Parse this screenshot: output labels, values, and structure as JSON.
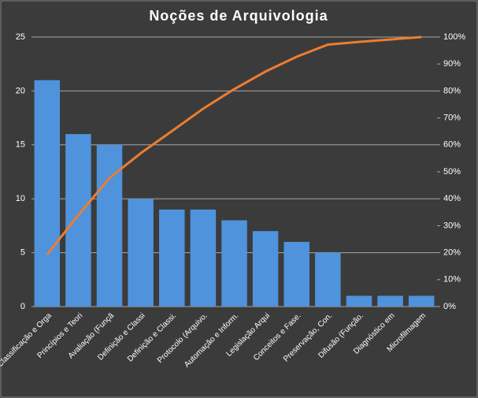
{
  "chart_data": {
    "type": "pareto",
    "title": "Noções de Arquivologia",
    "categories": [
      "Classificação e Orga",
      "Princípios e Teori",
      "Avaliação (Funçã",
      "Definição e Classi",
      "Definição e Classi.",
      "Protocolo (Arquivo.",
      "Automação e Inform.",
      "Legislação Arqui",
      "Conceitos e Fase.",
      "Preservação, Con.",
      "Difusão (Função.",
      "Diagnóstico em",
      "Microfilmagem"
    ],
    "series": [
      {
        "type": "bar",
        "color": "#4f93dc",
        "values": [
          21,
          16,
          15,
          10,
          9,
          9,
          8,
          7,
          6,
          5,
          1,
          1,
          1
        ]
      },
      {
        "type": "line",
        "axis": "y2",
        "color": "#ed7d31",
        "values": [
          19.3,
          33.9,
          47.7,
          56.9,
          65.1,
          73.4,
          80.7,
          87.2,
          92.7,
          97.2,
          98.2,
          99.1,
          100
        ]
      }
    ],
    "ylim": [
      0,
      25
    ],
    "yticks": [
      0,
      5,
      10,
      15,
      20,
      25
    ],
    "y2lim": [
      0,
      100
    ],
    "y2ticks": [
      {
        "value": 0,
        "label": "0%"
      },
      {
        "value": 10,
        "label": "10%"
      },
      {
        "value": 20,
        "label": "20%"
      },
      {
        "value": 30,
        "label": "30%"
      },
      {
        "value": 40,
        "label": "40%"
      },
      {
        "value": 50,
        "label": "50%"
      },
      {
        "value": 60,
        "label": "60%"
      },
      {
        "value": 70,
        "label": "70%"
      },
      {
        "value": 80,
        "label": "80%"
      },
      {
        "value": 90,
        "label": "90%"
      },
      {
        "value": 100,
        "label": "100%"
      }
    ],
    "grid": true
  }
}
